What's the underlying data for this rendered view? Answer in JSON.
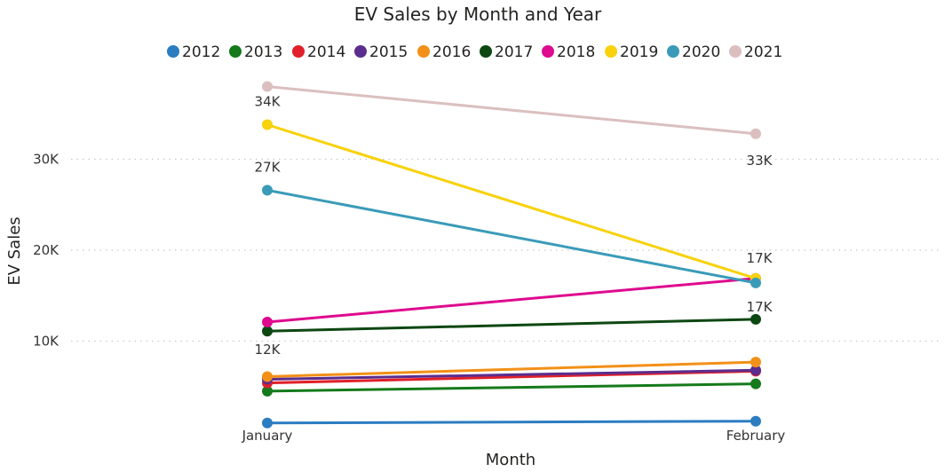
{
  "chart_data": {
    "type": "line",
    "title": "EV Sales by Month and Year",
    "xlabel": "Month",
    "ylabel": "EV Sales",
    "categories": [
      "January",
      "February"
    ],
    "ylim": [
      0,
      38000
    ],
    "yticks": [
      10000,
      20000,
      30000
    ],
    "ytick_labels": [
      "10K",
      "20K",
      "30K"
    ],
    "grid": true,
    "legend_position": "top",
    "series": [
      {
        "name": "2012",
        "color": "#2b7cc1",
        "values": [
          1000,
          1200
        ]
      },
      {
        "name": "2013",
        "color": "#147a1a",
        "values": [
          4500,
          5300
        ]
      },
      {
        "name": "2014",
        "color": "#e0202a",
        "values": [
          5400,
          6700
        ]
      },
      {
        "name": "2015",
        "color": "#5b2d8e",
        "values": [
          5800,
          6800
        ]
      },
      {
        "name": "2016",
        "color": "#f39017",
        "values": [
          6100,
          7700
        ]
      },
      {
        "name": "2017",
        "color": "#0d4712",
        "values": [
          11100,
          12400
        ]
      },
      {
        "name": "2018",
        "color": "#df0a8e",
        "values": [
          12100,
          16900
        ]
      },
      {
        "name": "2019",
        "color": "#f8d20c",
        "values": [
          33800,
          16900
        ]
      },
      {
        "name": "2020",
        "color": "#3a9bb8",
        "values": [
          26600,
          16400
        ]
      },
      {
        "name": "2021",
        "color": "#dbbfbf",
        "values": [
          38000,
          32800
        ]
      }
    ],
    "data_labels": [
      {
        "series": "2019",
        "category": "January",
        "text": "34K"
      },
      {
        "series": "2020",
        "category": "January",
        "text": "27K"
      },
      {
        "series": "2018",
        "category": "January",
        "text": "12K"
      },
      {
        "series": "2021",
        "category": "February",
        "text": "33K"
      },
      {
        "series": "2019",
        "category": "February",
        "text": "17K"
      },
      {
        "series": "2018",
        "category": "February",
        "text": "17K"
      }
    ]
  }
}
